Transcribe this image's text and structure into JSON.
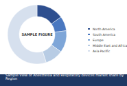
{
  "chart_data": {
    "type": "pie",
    "title": "Sample View of Anesthesia and Respiratory devices market share by Region",
    "annotations": [
      "SAMPLE FIGURE"
    ],
    "categories": [
      "North America",
      "South America",
      "Europe",
      "Middle East and Africa",
      "Asia Pacific"
    ],
    "values": [
      15,
      8,
      12,
      10,
      55
    ],
    "colors": [
      "#2e4f8f",
      "#4a78c0",
      "#7ea6d8",
      "#b8cce4",
      "#d6e0ee"
    ],
    "legend": "right"
  }
}
